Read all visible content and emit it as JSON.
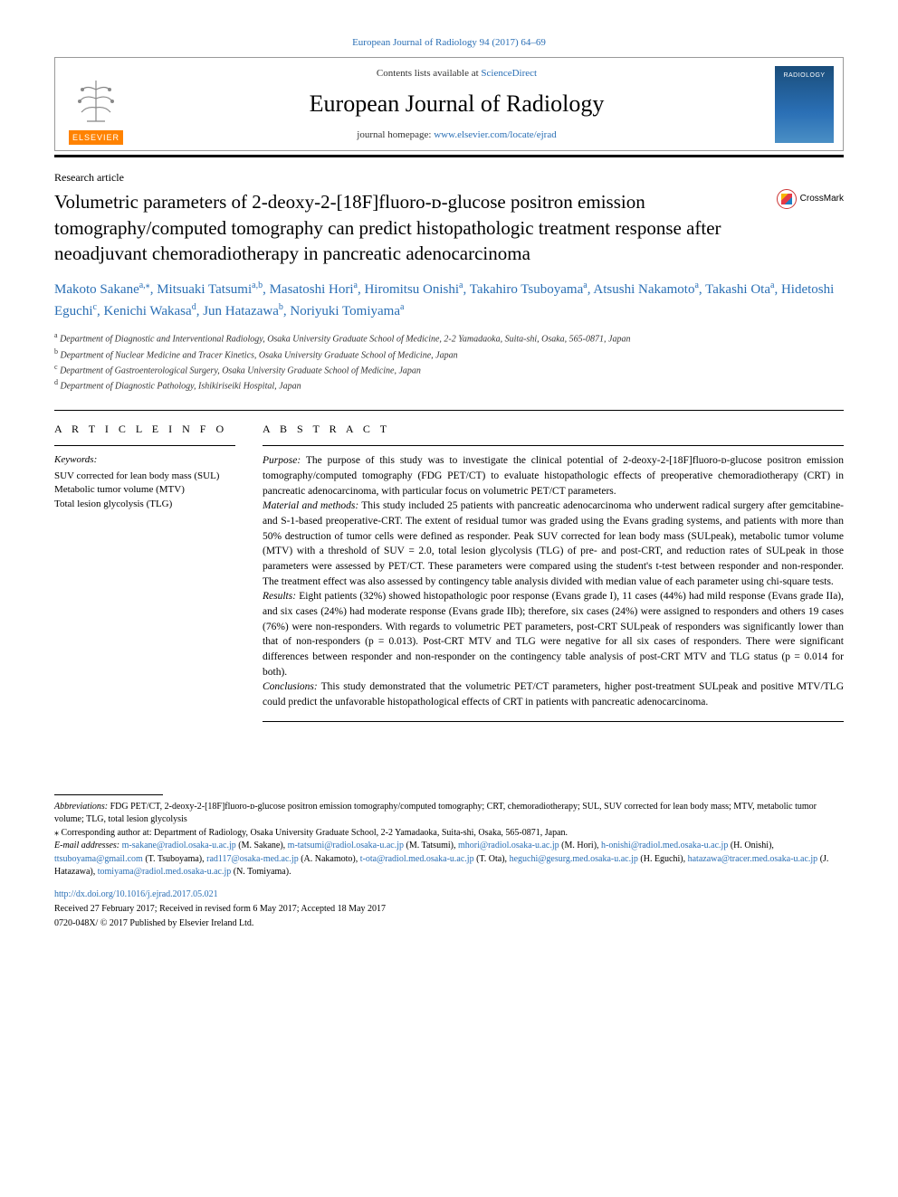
{
  "header": {
    "citation": "European Journal of Radiology 94 (2017) 64–69",
    "contents_prefix": "Contents lists available at ",
    "contents_link": "ScienceDirect",
    "journal_name": "European Journal of Radiology",
    "homepage_prefix": "journal homepage: ",
    "homepage_url": "www.elsevier.com/locate/ejrad",
    "elsevier_label": "ELSEVIER",
    "cover_text": "RADIOLOGY",
    "crossmark": "CrossMark"
  },
  "article": {
    "type": "Research article",
    "title": "Volumetric parameters of 2-deoxy-2-[18F]fluoro-ᴅ-glucose positron emission tomography/computed tomography can predict histopathologic treatment response after neoadjuvant chemoradiotherapy in pancreatic adenocarcinoma"
  },
  "authors": [
    {
      "name": "Makoto Sakane",
      "aff": "a,",
      "corr": "⁎"
    },
    {
      "name": "Mitsuaki Tatsumi",
      "aff": "a,b"
    },
    {
      "name": "Masatoshi Hori",
      "aff": "a"
    },
    {
      "name": "Hiromitsu Onishi",
      "aff": "a"
    },
    {
      "name": "Takahiro Tsuboyama",
      "aff": "a"
    },
    {
      "name": "Atsushi Nakamoto",
      "aff": "a"
    },
    {
      "name": "Takashi Ota",
      "aff": "a"
    },
    {
      "name": "Hidetoshi Eguchi",
      "aff": "c"
    },
    {
      "name": "Kenichi Wakasa",
      "aff": "d"
    },
    {
      "name": "Jun Hatazawa",
      "aff": "b"
    },
    {
      "name": "Noriyuki Tomiyama",
      "aff": "a"
    }
  ],
  "affiliations": [
    {
      "sup": "a",
      "text": "Department of Diagnostic and Interventional Radiology, Osaka University Graduate School of Medicine, 2-2 Yamadaoka, Suita-shi, Osaka, 565-0871, Japan"
    },
    {
      "sup": "b",
      "text": "Department of Nuclear Medicine and Tracer Kinetics, Osaka University Graduate School of Medicine, Japan"
    },
    {
      "sup": "c",
      "text": "Department of Gastroenterological Surgery, Osaka University Graduate School of Medicine, Japan"
    },
    {
      "sup": "d",
      "text": "Department of Diagnostic Pathology, Ishikiriseiki Hospital, Japan"
    }
  ],
  "info": {
    "heading": "A R T I C L E  I N F O",
    "keywords_label": "Keywords:",
    "keywords": [
      "SUV corrected for lean body mass (SUL)",
      "Metabolic tumor volume (MTV)",
      "Total lesion glycolysis (TLG)"
    ]
  },
  "abstract": {
    "heading": "A B S T R A C T",
    "sections": [
      {
        "label": "Purpose:",
        "text": " The purpose of this study was to investigate the clinical potential of 2-deoxy-2-[18F]fluoro-ᴅ-glucose positron emission tomography/computed tomography (FDG PET/CT) to evaluate histopathologic effects of preoperative chemoradiotherapy (CRT) in pancreatic adenocarcinoma, with particular focus on volumetric PET/CT parameters."
      },
      {
        "label": "Material and methods:",
        "text": " This study included 25 patients with pancreatic adenocarcinoma who underwent radical surgery after gemcitabine- and S-1-based preoperative-CRT. The extent of residual tumor was graded using the Evans grading systems, and patients with more than 50% destruction of tumor cells were defined as responder. Peak SUV corrected for lean body mass (SULpeak), metabolic tumor volume (MTV) with a threshold of SUV = 2.0, total lesion glycolysis (TLG) of pre- and post-CRT, and reduction rates of SULpeak in those parameters were assessed by PET/CT. These parameters were compared using the student's t-test between responder and non-responder. The treatment effect was also assessed by contingency table analysis divided with median value of each parameter using chi-square tests."
      },
      {
        "label": "Results:",
        "text": " Eight patients (32%) showed histopathologic poor response (Evans grade I), 11 cases (44%) had mild response (Evans grade IIa), and six cases (24%) had moderate response (Evans grade IIb); therefore, six cases (24%) were assigned to responders and others 19 cases (76%) were non-responders. With regards to volumetric PET parameters, post-CRT SULpeak of responders was significantly lower than that of non-responders (p = 0.013). Post-CRT MTV and TLG were negative for all six cases of responders. There were significant differences between responder and non-responder on the contingency table analysis of post-CRT MTV and TLG status (p = 0.014 for both)."
      },
      {
        "label": "Conclusions:",
        "text": " This study demonstrated that the volumetric PET/CT parameters, higher post-treatment SULpeak and positive MTV/TLG could predict the unfavorable histopathological effects of CRT in patients with pancreatic adenocarcinoma."
      }
    ]
  },
  "footnotes": {
    "abbrev_label": "Abbreviations:",
    "abbrev_text": " FDG PET/CT, 2-deoxy-2-[18F]fluoro-ᴅ-glucose positron emission tomography/computed tomography; CRT, chemoradiotherapy; SUL, SUV corrected for lean body mass; MTV, metabolic tumor volume; TLG, total lesion glycolysis",
    "corr_marker": "⁎",
    "corr_text": " Corresponding author at: Department of Radiology, Osaka University Graduate School, 2-2 Yamadaoka, Suita-shi, Osaka, 565-0871, Japan.",
    "email_label": "E-mail addresses:",
    "emails": [
      {
        "addr": "m-sakane@radiol.osaka-u.ac.jp",
        "who": " (M. Sakane), "
      },
      {
        "addr": "m-tatsumi@radiol.osaka-u.ac.jp",
        "who": " (M. Tatsumi), "
      },
      {
        "addr": "mhori@radiol.osaka-u.ac.jp",
        "who": " (M. Hori),"
      },
      {
        "addr": "h-onishi@radiol.med.osaka-u.ac.jp",
        "who": " (H. Onishi), "
      },
      {
        "addr": "ttsuboyama@gmail.com",
        "who": " (T. Tsuboyama), "
      },
      {
        "addr": "rad117@osaka-med.ac.jp",
        "who": " (A. Nakamoto), "
      },
      {
        "addr": "t-ota@radiol.med.osaka-u.ac.jp",
        "who": " (T. Ota),"
      },
      {
        "addr": "heguchi@gesurg.med.osaka-u.ac.jp",
        "who": " (H. Eguchi), "
      },
      {
        "addr": "hatazawa@tracer.med.osaka-u.ac.jp",
        "who": " (J. Hatazawa), "
      },
      {
        "addr": "tomiyama@radiol.med.osaka-u.ac.jp",
        "who": " (N. Tomiyama)."
      }
    ]
  },
  "meta": {
    "doi": "http://dx.doi.org/10.1016/j.ejrad.2017.05.021",
    "history": "Received 27 February 2017; Received in revised form 6 May 2017; Accepted 18 May 2017",
    "copyright": "0720-048X/ © 2017 Published by Elsevier Ireland Ltd."
  },
  "colors": {
    "link": "#2a6fb5",
    "elsevier_orange": "#ff8200",
    "rule": "#000000"
  }
}
